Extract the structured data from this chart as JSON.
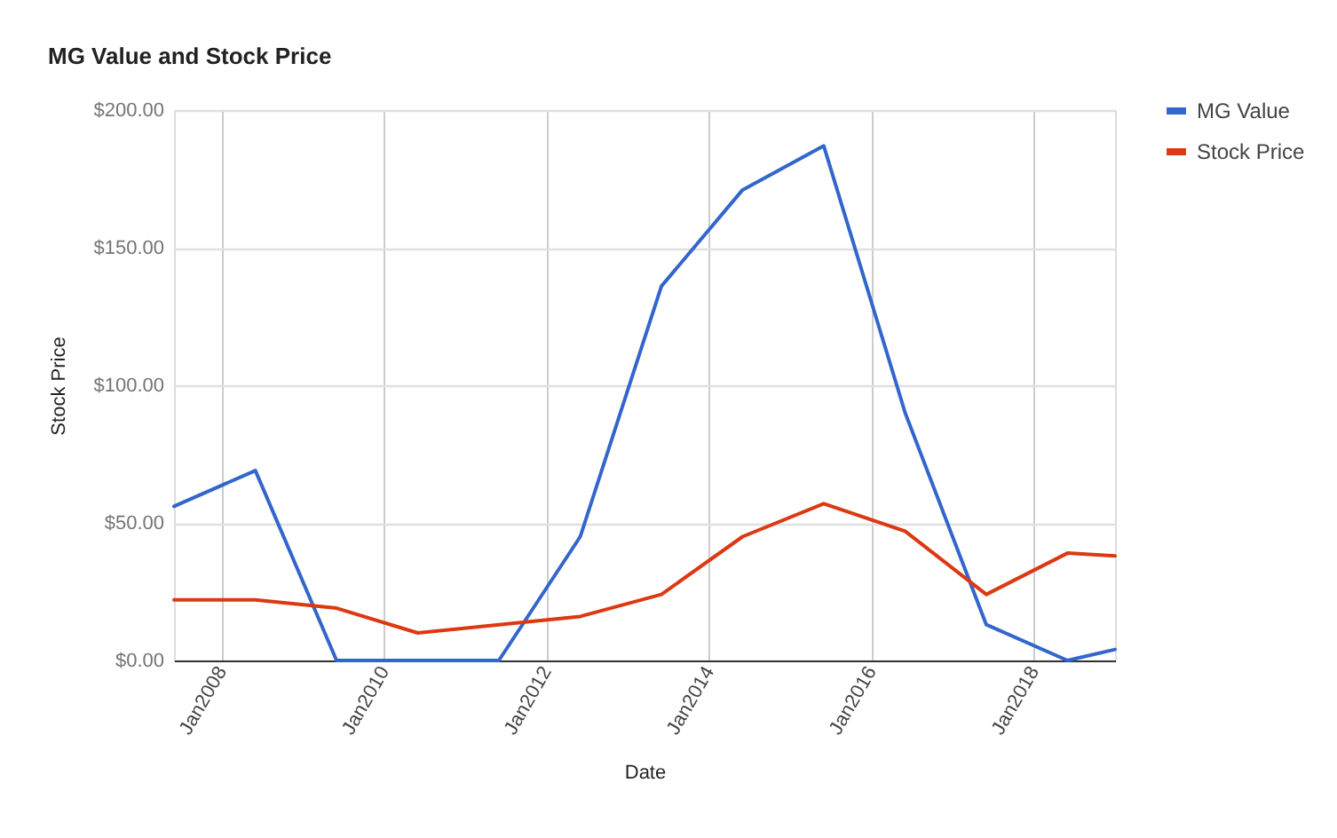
{
  "chart_data": {
    "type": "line",
    "title": "MG Value and Stock Price",
    "xlabel": "Date",
    "ylabel": "Stock Price",
    "x": [
      "2007-06",
      "2008-06",
      "2009-06",
      "2010-06",
      "2011-06",
      "2012-06",
      "2013-06",
      "2014-06",
      "2015-06",
      "2016-06",
      "2017-06",
      "2018-06",
      "2019-01"
    ],
    "series": [
      {
        "name": "MG Value",
        "color": "#3366cc",
        "values": [
          56,
          69,
          0,
          0,
          0,
          45,
          136,
          171,
          187,
          90,
          13,
          0,
          4
        ]
      },
      {
        "name": "Stock Price",
        "color": "#dc3912",
        "values": [
          22,
          22,
          19,
          10,
          13,
          16,
          24,
          45,
          57,
          47,
          24,
          39,
          38
        ]
      }
    ],
    "xlim": [
      "2007-06",
      "2019-01"
    ],
    "xticks": [
      {
        "value": "2008-01",
        "label": "Jan2008"
      },
      {
        "value": "2010-01",
        "label": "Jan2010"
      },
      {
        "value": "2012-01",
        "label": "Jan2012"
      },
      {
        "value": "2014-01",
        "label": "Jan2014"
      },
      {
        "value": "2016-01",
        "label": "Jan2016"
      },
      {
        "value": "2018-01",
        "label": "Jan2018"
      }
    ],
    "ylim": [
      0,
      200
    ],
    "yticks": [
      {
        "value": 0,
        "label": "$0.00"
      },
      {
        "value": 50,
        "label": "$50.00"
      },
      {
        "value": 100,
        "label": "$100.00"
      },
      {
        "value": 150,
        "label": "$150.00"
      },
      {
        "value": 200,
        "label": "$200.00"
      }
    ],
    "grid": true,
    "legend": "right"
  }
}
